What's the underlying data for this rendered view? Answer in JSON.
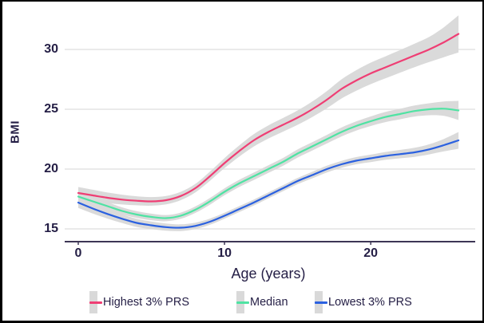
{
  "chart_data": {
    "type": "line",
    "title": "",
    "xlabel": "Age (years)",
    "ylabel": "BMI",
    "x": [
      0,
      1,
      2,
      3,
      4,
      5,
      6,
      7,
      8,
      9,
      10,
      11,
      12,
      13,
      14,
      15,
      16,
      17,
      18,
      19,
      20,
      21,
      22,
      23,
      24,
      25,
      26
    ],
    "series": [
      {
        "name": "Highest 3% PRS",
        "color": "#ef3e74",
        "values": [
          18.0,
          17.8,
          17.6,
          17.45,
          17.35,
          17.3,
          17.4,
          17.75,
          18.4,
          19.4,
          20.5,
          21.5,
          22.4,
          23.1,
          23.7,
          24.3,
          25.0,
          25.8,
          26.7,
          27.4,
          28.0,
          28.5,
          29.0,
          29.5,
          30.0,
          30.6,
          31.3
        ],
        "ci_halfwidth": [
          0.5,
          0.47,
          0.44,
          0.41,
          0.38,
          0.36,
          0.35,
          0.35,
          0.36,
          0.38,
          0.42,
          0.47,
          0.52,
          0.55,
          0.57,
          0.6,
          0.65,
          0.72,
          0.8,
          0.86,
          0.9,
          0.92,
          0.94,
          0.98,
          1.05,
          1.25,
          1.55
        ]
      },
      {
        "name": "Median",
        "color": "#4fe3a3",
        "values": [
          17.7,
          17.3,
          16.9,
          16.5,
          16.2,
          16.0,
          15.9,
          16.1,
          16.6,
          17.3,
          18.1,
          18.8,
          19.4,
          20.0,
          20.6,
          21.3,
          21.9,
          22.5,
          23.1,
          23.6,
          24.0,
          24.35,
          24.6,
          24.85,
          25.0,
          25.05,
          24.9
        ],
        "ci_halfwidth": [
          0.4,
          0.36,
          0.33,
          0.3,
          0.28,
          0.27,
          0.26,
          0.26,
          0.27,
          0.28,
          0.29,
          0.3,
          0.31,
          0.32,
          0.33,
          0.34,
          0.35,
          0.36,
          0.37,
          0.38,
          0.4,
          0.42,
          0.44,
          0.46,
          0.5,
          0.6,
          0.8
        ]
      },
      {
        "name": "Lowest 3% PRS",
        "color": "#2b61e0",
        "values": [
          17.2,
          16.7,
          16.25,
          15.85,
          15.5,
          15.3,
          15.15,
          15.1,
          15.25,
          15.6,
          16.1,
          16.65,
          17.2,
          17.8,
          18.4,
          19.0,
          19.5,
          20.0,
          20.4,
          20.7,
          20.9,
          21.1,
          21.25,
          21.4,
          21.65,
          22.0,
          22.4
        ],
        "ci_halfwidth": [
          0.45,
          0.42,
          0.39,
          0.36,
          0.34,
          0.32,
          0.3,
          0.28,
          0.27,
          0.26,
          0.25,
          0.25,
          0.25,
          0.25,
          0.25,
          0.26,
          0.27,
          0.28,
          0.29,
          0.3,
          0.31,
          0.33,
          0.35,
          0.38,
          0.42,
          0.52,
          0.7
        ]
      }
    ],
    "xticks": [
      0,
      10,
      20
    ],
    "yticks": [
      15,
      20,
      25,
      30
    ],
    "xlim": [
      0,
      26
    ],
    "ylim": [
      13.9,
      33
    ],
    "grid": "horizontal",
    "band_color": "#dadada",
    "legend_position": "bottom"
  }
}
